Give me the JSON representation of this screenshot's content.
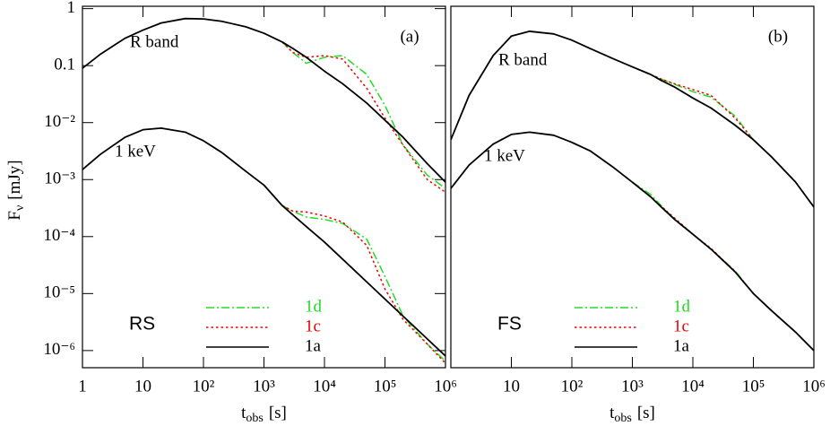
{
  "chart_data": [
    {
      "type": "line",
      "panel_label": "(a)",
      "shock_label": "RS",
      "ylabel": {
        "main": "F",
        "sub": "ν",
        "unit": "[mJy]"
      },
      "xlabel": {
        "main": "t",
        "sub": "obs",
        "unit": "[s]"
      },
      "log_x": true,
      "log_y": true,
      "xlim": [
        1,
        1000000
      ],
      "ylim": [
        5e-07,
        1.1
      ],
      "xticks": [
        1,
        10,
        {
          "value": 100,
          "label": "10²"
        },
        {
          "value": 1000,
          "label": "10³"
        },
        {
          "value": 10000,
          "label": "10⁴"
        },
        {
          "value": 100000,
          "label": "10⁵"
        },
        {
          "value": 1000000,
          "label": "10⁶"
        }
      ],
      "yticks": [
        1,
        0.1,
        {
          "value": 0.01,
          "label": "10⁻²"
        },
        {
          "value": 0.001,
          "label": "10⁻³"
        },
        {
          "value": 0.0001,
          "label": "10⁻⁴"
        },
        {
          "value": 1e-05,
          "label": "10⁻⁵"
        },
        {
          "value": 1e-06,
          "label": "10⁻⁶"
        }
      ],
      "band_labels": [
        "R band",
        "1 keV"
      ],
      "x": [
        1,
        2,
        5,
        10,
        20,
        50,
        100,
        200,
        500,
        1000,
        2000,
        3000,
        5000,
        10000,
        20000,
        50000,
        100000,
        200000,
        500000,
        1000000
      ],
      "series": [
        {
          "name": "1d",
          "color": "#22dd22",
          "dash": "dashdot",
          "values": [
            [
              null,
              null,
              null,
              null,
              null,
              null,
              null,
              null,
              null,
              null,
              0.26,
              0.17,
              0.11,
              0.14,
              0.15,
              0.07,
              0.02,
              0.004,
              0.0012,
              0.0007
            ],
            [
              null,
              null,
              null,
              null,
              null,
              null,
              null,
              null,
              null,
              null,
              0.00035,
              0.00028,
              0.00022,
              0.0002,
              0.00017,
              9e-05,
              2e-05,
              4e-06,
              1.3e-06,
              6.5e-07
            ]
          ]
        },
        {
          "name": "1c",
          "color": "#ee0000",
          "dash": "dotted",
          "values": [
            [
              null,
              null,
              null,
              null,
              null,
              null,
              null,
              null,
              null,
              null,
              0.26,
              0.17,
              0.14,
              0.15,
              0.13,
              0.04,
              0.012,
              0.004,
              0.001,
              0.0006
            ],
            [
              null,
              null,
              null,
              null,
              null,
              null,
              null,
              null,
              null,
              null,
              0.00035,
              0.00028,
              0.00027,
              0.00023,
              0.00018,
              7e-05,
              1.2e-05,
              3.5e-06,
              1.3e-06,
              6e-07
            ]
          ]
        },
        {
          "name": "1a",
          "color": "#000000",
          "dash": "solid",
          "values": [
            [
              0.09,
              0.16,
              0.3,
              0.42,
              0.56,
              0.67,
              0.66,
              0.6,
              0.48,
              0.37,
              0.26,
              0.2,
              0.14,
              0.08,
              0.048,
              0.022,
              0.011,
              0.0055,
              0.0019,
              0.0009
            ],
            [
              0.0015,
              0.0028,
              0.0055,
              0.0075,
              0.008,
              0.0068,
              0.0048,
              0.003,
              0.0014,
              0.0008,
              0.00035,
              0.00024,
              0.00015,
              8e-05,
              4e-05,
              1.6e-05,
              8e-06,
              4e-06,
              1.6e-06,
              8e-07
            ]
          ]
        }
      ]
    },
    {
      "type": "line",
      "panel_label": "(b)",
      "shock_label": "FS",
      "xlabel": {
        "main": "t",
        "sub": "obs",
        "unit": "[s]"
      },
      "log_x": true,
      "log_y": true,
      "xlim": [
        1,
        1000000
      ],
      "ylim": [
        5e-07,
        1.1
      ],
      "xticks": [
        10,
        {
          "value": 100,
          "label": "10²"
        },
        {
          "value": 1000,
          "label": "10³"
        },
        {
          "value": 10000,
          "label": "10⁴"
        },
        {
          "value": 100000,
          "label": "10⁵"
        },
        {
          "value": 1000000,
          "label": "10⁶"
        }
      ],
      "band_labels": [
        "R band",
        "1 keV"
      ],
      "x": [
        1,
        2,
        5,
        10,
        20,
        50,
        100,
        200,
        500,
        1000,
        2000,
        3000,
        5000,
        10000,
        20000,
        50000,
        100000,
        200000,
        500000,
        1000000
      ],
      "series": [
        {
          "name": "1d",
          "color": "#22dd22",
          "dash": "dashdot",
          "values": [
            [
              null,
              null,
              null,
              null,
              null,
              null,
              null,
              null,
              null,
              0.095,
              0.07,
              0.058,
              0.047,
              0.035,
              0.028,
              0.013,
              0.005,
              0.0025,
              0.0009,
              0.00033
            ],
            [
              null,
              null,
              null,
              null,
              null,
              null,
              null,
              null,
              null,
              0.0009,
              0.00055,
              0.00035,
              0.0002,
              0.00011,
              6e-05,
              2.5e-05,
              1e-05,
              5e-06,
              2.1e-06,
              1e-06
            ]
          ]
        },
        {
          "name": "1c",
          "color": "#ee0000",
          "dash": "dotted",
          "values": [
            [
              null,
              null,
              null,
              null,
              null,
              null,
              null,
              null,
              null,
              0.095,
              0.07,
              0.058,
              0.048,
              0.038,
              0.03,
              0.012,
              0.005,
              0.0025,
              0.0009,
              0.00033
            ],
            [
              null,
              null,
              null,
              null,
              null,
              null,
              null,
              null,
              null,
              0.0009,
              0.0005,
              0.00034,
              0.00021,
              0.00011,
              6.2e-05,
              2.4e-05,
              1e-05,
              5e-06,
              2.1e-06,
              1e-06
            ]
          ]
        },
        {
          "name": "1a",
          "color": "#000000",
          "dash": "solid",
          "values": [
            [
              0.005,
              0.03,
              0.15,
              0.33,
              0.4,
              0.36,
              0.28,
              0.2,
              0.13,
              0.095,
              0.07,
              0.055,
              0.042,
              0.027,
              0.018,
              0.009,
              0.005,
              0.0025,
              0.0009,
              0.00033
            ],
            [
              0.0007,
              0.0018,
              0.0042,
              0.0062,
              0.0068,
              0.006,
              0.0045,
              0.0032,
              0.0016,
              0.0009,
              0.0005,
              0.00033,
              0.0002,
              0.00011,
              6e-05,
              2.4e-05,
              1e-05,
              5e-06,
              2.1e-06,
              1e-06
            ]
          ]
        }
      ]
    }
  ]
}
